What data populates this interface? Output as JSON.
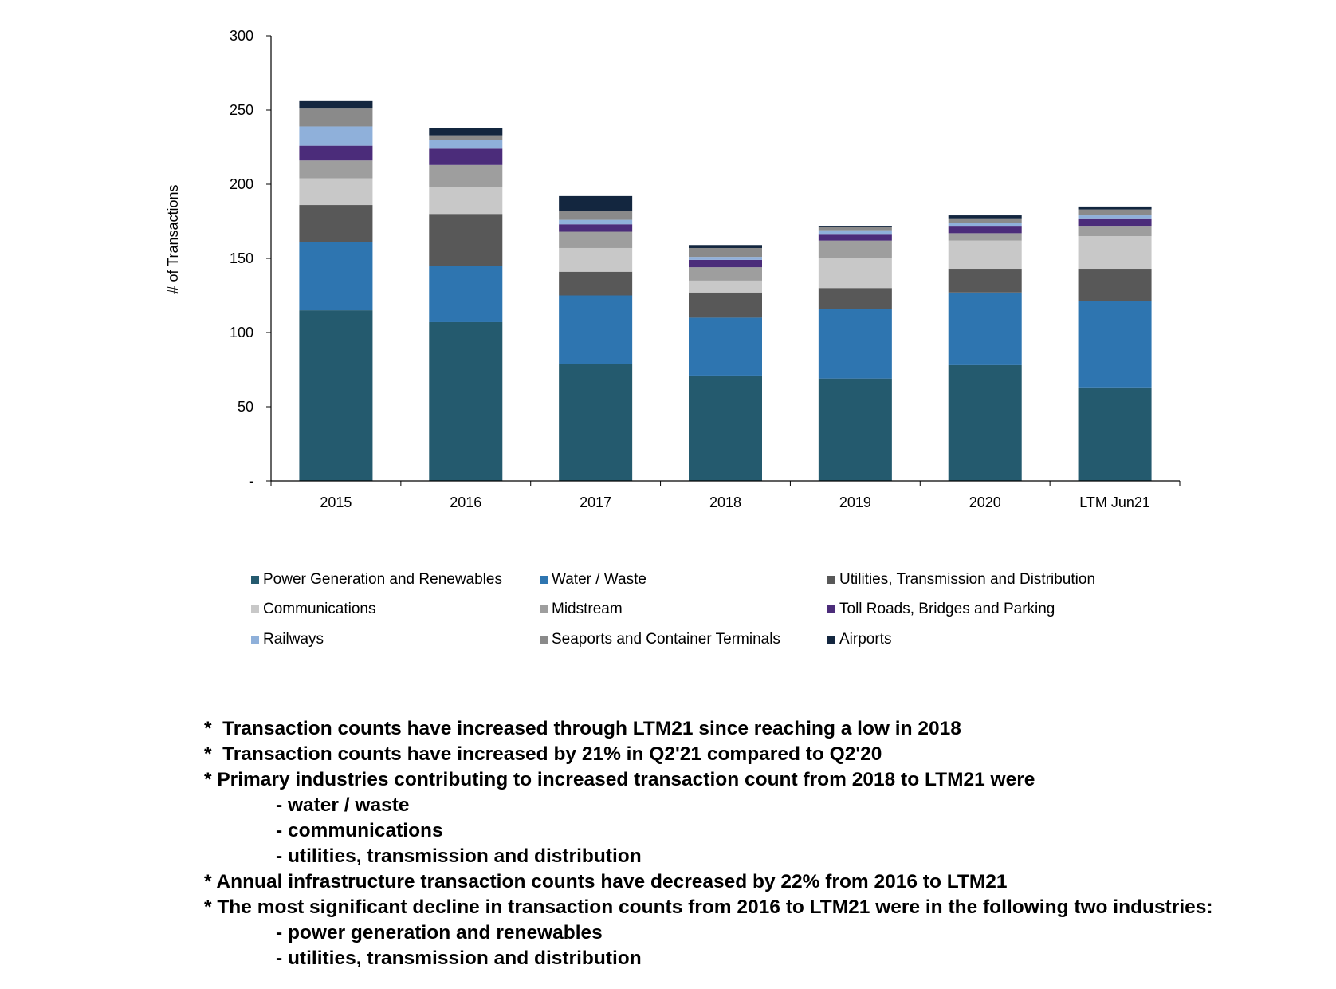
{
  "chart_data": {
    "type": "bar",
    "stacked": true,
    "categories": [
      "2015",
      "2016",
      "2017",
      "2018",
      "2019",
      "2020",
      "LTM Jun21"
    ],
    "ylabel": "# of Transactions",
    "xlabel": "",
    "ylim": [
      0,
      300
    ],
    "yticks": [
      0,
      50,
      100,
      150,
      200,
      250,
      300
    ],
    "ytick_labels": [
      "-",
      "50",
      "100",
      "150",
      "200",
      "250",
      "300"
    ],
    "grid": false,
    "legend_position": "bottom",
    "series": [
      {
        "name": "Power Generation and Renewables",
        "color": "#245A6E",
        "values": [
          115,
          107,
          79,
          71,
          69,
          78,
          63
        ]
      },
      {
        "name": "Water / Waste",
        "color": "#2E75B0",
        "values": [
          46,
          38,
          46,
          39,
          47,
          49,
          58
        ]
      },
      {
        "name": "Utilities, Transmission and Distribution",
        "color": "#585858",
        "values": [
          25,
          35,
          16,
          17,
          14,
          16,
          22
        ]
      },
      {
        "name": "Communications",
        "color": "#C8C8C8",
        "values": [
          18,
          18,
          16,
          8,
          20,
          19,
          22
        ]
      },
      {
        "name": "Midstream",
        "color": "#9E9E9E",
        "values": [
          12,
          15,
          11,
          9,
          12,
          5,
          7
        ]
      },
      {
        "name": "Toll Roads, Bridges and Parking",
        "color": "#4B2C7A",
        "values": [
          10,
          11,
          5,
          5,
          4,
          5,
          5
        ]
      },
      {
        "name": "Railways",
        "color": "#8FB0DA",
        "values": [
          13,
          6,
          3,
          2,
          3,
          2,
          2
        ]
      },
      {
        "name": "Seaports and Container Terminals",
        "color": "#8A8A8A",
        "values": [
          12,
          3,
          6,
          6,
          2,
          3,
          4
        ]
      },
      {
        "name": "Airports",
        "color": "#13263F",
        "values": [
          5,
          5,
          10,
          2,
          1,
          2,
          2
        ]
      }
    ]
  },
  "notes": [
    {
      "text": "*  Transaction counts have increased through LTM21 since reaching a low in 2018",
      "indent": false
    },
    {
      "text": "*  Transaction counts have increased by 21% in Q2'21 compared to Q2'20",
      "indent": false
    },
    {
      "text": "* Primary industries contributing to increased transaction count from 2018 to LTM21 were",
      "indent": false
    },
    {
      "text": "- water / waste",
      "indent": true
    },
    {
      "text": "- communications",
      "indent": true
    },
    {
      "text": "- utilities, transmission and distribution",
      "indent": true
    },
    {
      "text": "* Annual infrastructure transaction counts have decreased by 22% from 2016 to LTM21",
      "indent": false
    },
    {
      "text": "* The most significant decline in transaction counts from 2016 to LTM21 were in the following two industries:",
      "indent": false
    },
    {
      "text": "- power generation and renewables",
      "indent": true
    },
    {
      "text": "- utilities, transmission and distribution",
      "indent": true
    }
  ]
}
